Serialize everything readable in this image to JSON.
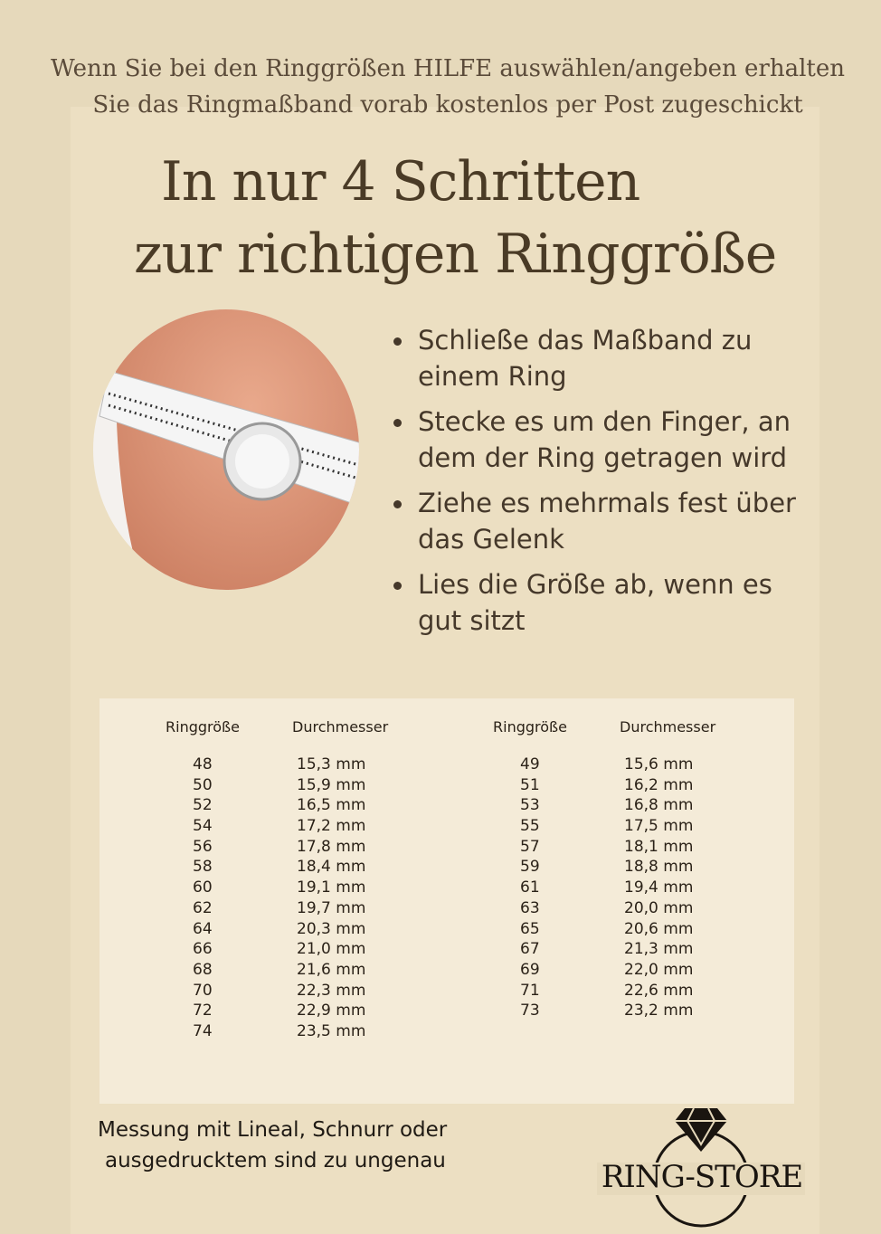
{
  "intro": {
    "line1": "Wenn Sie bei den Ringgrößen HILFE auswählen/angeben erhalten",
    "line2": "Sie das Ringmaßband vorab kostenlos per Post zugeschickt"
  },
  "title": {
    "line1": "In nur 4 Schritten",
    "line2": "zur richtigen Ringgröße"
  },
  "steps": [
    "Schließe das Maßband zu einem Ring",
    "Stecke es um den Finger, an dem der Ring getragen wird",
    "Ziehe es mehrmals fest über das Gelenk",
    "Lies die Größe ab, wenn es gut sitzt"
  ],
  "table": {
    "headers": [
      "Ringgröße",
      "Durchmesser"
    ],
    "left": [
      [
        "48",
        "15,3 mm"
      ],
      [
        "50",
        "15,9 mm"
      ],
      [
        "52",
        "16,5 mm"
      ],
      [
        "54",
        "17,2 mm"
      ],
      [
        "56",
        "17,8 mm"
      ],
      [
        "58",
        "18,4 mm"
      ],
      [
        "60",
        "19,1 mm"
      ],
      [
        "62",
        "19,7 mm"
      ],
      [
        "64",
        "20,3 mm"
      ],
      [
        "66",
        "21,0 mm"
      ],
      [
        "68",
        "21,6 mm"
      ],
      [
        "70",
        "22,3 mm"
      ],
      [
        "72",
        "22,9 mm"
      ],
      [
        "74",
        "23,5 mm"
      ]
    ],
    "right": [
      [
        "49",
        "15,6 mm"
      ],
      [
        "51",
        "16,2 mm"
      ],
      [
        "53",
        "16,8 mm"
      ],
      [
        "55",
        "17,5 mm"
      ],
      [
        "57",
        "18,1 mm"
      ],
      [
        "59",
        "18,8 mm"
      ],
      [
        "61",
        "19,4 mm"
      ],
      [
        "63",
        "20,0 mm"
      ],
      [
        "65",
        "20,6 mm"
      ],
      [
        "67",
        "21,3 mm"
      ],
      [
        "69",
        "22,0 mm"
      ],
      [
        "71",
        "22,6 mm"
      ],
      [
        "73",
        "23,2 mm"
      ]
    ]
  },
  "note": {
    "line1": "Messung mit Lineal, Schnurr oder",
    "line2": "ausgedrucktem sind zu ungenau"
  },
  "logo": {
    "text": "RING-STORE"
  },
  "colors": {
    "background": "#e6d9bb",
    "table_bg": "#f4ebd8",
    "text": "#3f3322"
  }
}
